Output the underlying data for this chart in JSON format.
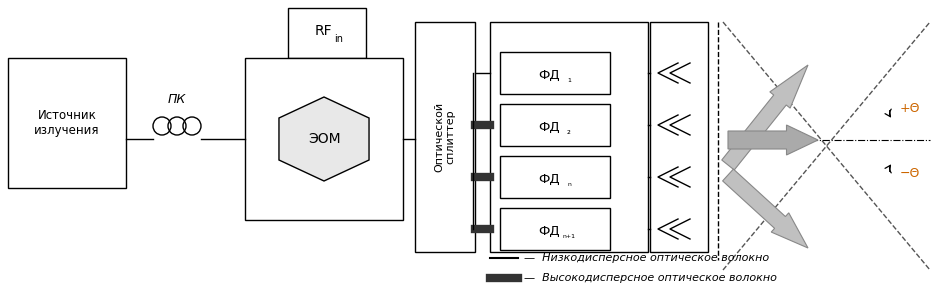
{
  "bg_color": "#ffffff",
  "line_color": "#000000",
  "theta_color": "#cc6600",
  "source_text": "Источник\nизлучения",
  "pk_label": "ПК",
  "eom_label": "ЭОМ",
  "rf_label": "RF",
  "rf_sub": "in",
  "splitter_text": "Оптической\nсплиттер",
  "fd_labels_base": [
    "ФД",
    "ФД",
    "ФД",
    "ФД"
  ],
  "fd_subs": [
    "₁",
    "₂",
    "ₙ",
    "ₙ₊₁"
  ],
  "legend_text1": "—  Низкодисперсное оптическое волокно",
  "legend_text2": "—  Высокодисперсное оптическое волокно"
}
